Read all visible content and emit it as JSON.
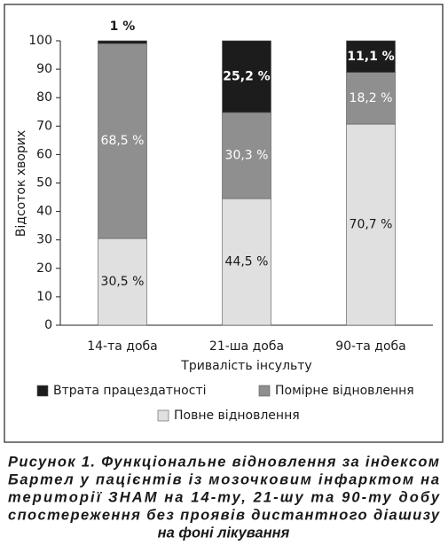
{
  "chart_data": {
    "type": "stacked_bar",
    "categories": [
      "14-та доба",
      "21-ша доба",
      "90-та доба"
    ],
    "series": [
      {
        "name": "Повне відновлення",
        "color": "#e0e0e0",
        "values": [
          30.5,
          44.5,
          70.7
        ],
        "value_labels": [
          "30,5 %",
          "44,5 %",
          "70,7 %"
        ]
      },
      {
        "name": "Помірне відновлення",
        "color": "#8f8f8f",
        "values": [
          68.5,
          30.3,
          18.2
        ],
        "value_labels": [
          "68,5 %",
          "30,3 %",
          "18,2 %"
        ]
      },
      {
        "name": "Втрата працездатності",
        "color": "#1c1c1c",
        "values": [
          1,
          25.2,
          11.1
        ],
        "value_labels": [
          "1 %",
          "25,2 %",
          "11,1 %"
        ]
      }
    ],
    "ylim": [
      0,
      100
    ],
    "yticks": [
      0,
      10,
      20,
      30,
      40,
      50,
      60,
      70,
      80,
      90,
      100
    ],
    "ylabel": "Відсоток хворих",
    "xlabel": "Тривалість інсульту",
    "grid": false,
    "caption": [
      "Рисунок 1. Функціональне відновлення за індексом",
      "Бартел у пацієнтів із мозочковим інфарктом на",
      "території ЗНАМ на 14-ту, 21-шу та 90-ту добу",
      "спостереження без проявів дистантного діашизу",
      "на фоні лікування"
    ]
  }
}
